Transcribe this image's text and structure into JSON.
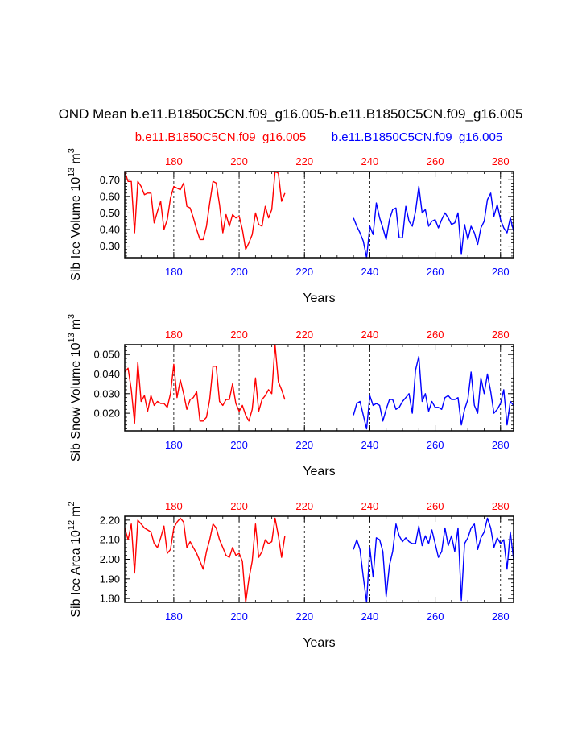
{
  "figure": {
    "title": "OND Mean b.e11.B1850C5CN.f09_g16.005-b.e11.B1850C5CN.f09_g16.005",
    "legend_red": "b.e11.B1850C5CN.f09_g16.005",
    "legend_blue": "b.e11.B1850C5CN.f09_g16.005",
    "colors": {
      "red": "#ff0000",
      "blue": "#0000ff",
      "axis": "#000000",
      "grid": "#000000"
    }
  },
  "chart_data": [
    {
      "type": "line",
      "ylabel_main": "Sib Ice Volume 10",
      "ylabel_exp": "13",
      "ylabel_unit": "m",
      "ylabel_unit_exp": "3",
      "xlabel": "Years",
      "xlim": [
        165,
        284
      ],
      "ylim": [
        0.23,
        0.75
      ],
      "yticks": [
        0.3,
        0.4,
        0.5,
        0.6,
        0.7
      ],
      "ytick_labels": [
        "0.30",
        "0.40",
        "0.50",
        "0.60",
        "0.70"
      ],
      "ydecimals": 2,
      "xticks": [
        180,
        200,
        220,
        240,
        260,
        280
      ],
      "xtick_labels_top": [
        "180",
        "200",
        "220",
        "240",
        "260",
        "280"
      ],
      "xtick_labels_bottom": [
        "180",
        "200",
        "220",
        "240",
        "260",
        "280"
      ],
      "series": [
        {
          "color": "red",
          "x_start": 165,
          "values": [
            0.75,
            0.69,
            0.69,
            0.38,
            0.69,
            0.66,
            0.61,
            0.62,
            0.62,
            0.44,
            0.51,
            0.57,
            0.4,
            0.46,
            0.59,
            0.66,
            0.65,
            0.64,
            0.68,
            0.54,
            0.53,
            0.47,
            0.4,
            0.34,
            0.34,
            0.42,
            0.56,
            0.69,
            0.68,
            0.55,
            0.38,
            0.49,
            0.42,
            0.49,
            0.47,
            0.48,
            0.4,
            0.28,
            0.32,
            0.37,
            0.5,
            0.43,
            0.42,
            0.54,
            0.47,
            0.52,
            0.75,
            0.74,
            0.57,
            0.62
          ]
        },
        {
          "color": "blue",
          "x_start": 235,
          "values": [
            0.47,
            0.42,
            0.38,
            0.33,
            0.23,
            0.42,
            0.37,
            0.56,
            0.47,
            0.41,
            0.34,
            0.46,
            0.52,
            0.53,
            0.35,
            0.35,
            0.54,
            0.45,
            0.42,
            0.51,
            0.66,
            0.5,
            0.52,
            0.42,
            0.45,
            0.46,
            0.41,
            0.46,
            0.5,
            0.47,
            0.43,
            0.44,
            0.5,
            0.25,
            0.43,
            0.34,
            0.42,
            0.38,
            0.31,
            0.41,
            0.45,
            0.58,
            0.62,
            0.48,
            0.55,
            0.46,
            0.41,
            0.38,
            0.47,
            0.39
          ]
        }
      ]
    },
    {
      "type": "line",
      "ylabel_main": "Sib Snow Volume 10",
      "ylabel_exp": "13",
      "ylabel_unit": "m",
      "ylabel_unit_exp": "3",
      "xlabel": "Years",
      "xlim": [
        165,
        284
      ],
      "ylim": [
        0.011,
        0.055
      ],
      "yticks": [
        0.02,
        0.03,
        0.04,
        0.05
      ],
      "ytick_labels": [
        "0.020",
        "0.030",
        "0.040",
        "0.050"
      ],
      "ydecimals": 3,
      "xticks": [
        180,
        200,
        220,
        240,
        260,
        280
      ],
      "xtick_labels_top": [
        "180",
        "200",
        "220",
        "240",
        "260",
        "280"
      ],
      "xtick_labels_bottom": [
        "180",
        "200",
        "220",
        "240",
        "260",
        "280"
      ],
      "series": [
        {
          "color": "red",
          "x_start": 165,
          "values": [
            0.041,
            0.043,
            0.032,
            0.015,
            0.046,
            0.026,
            0.029,
            0.021,
            0.029,
            0.024,
            0.026,
            0.025,
            0.025,
            0.023,
            0.03,
            0.045,
            0.028,
            0.037,
            0.03,
            0.022,
            0.027,
            0.028,
            0.031,
            0.016,
            0.016,
            0.018,
            0.027,
            0.044,
            0.044,
            0.026,
            0.024,
            0.027,
            0.027,
            0.035,
            0.025,
            0.021,
            0.024,
            0.019,
            0.016,
            0.022,
            0.038,
            0.021,
            0.027,
            0.029,
            0.032,
            0.03,
            0.055,
            0.036,
            0.032,
            0.027
          ]
        },
        {
          "color": "blue",
          "x_start": 235,
          "values": [
            0.019,
            0.025,
            0.026,
            0.019,
            0.012,
            0.029,
            0.024,
            0.025,
            0.024,
            0.016,
            0.022,
            0.027,
            0.027,
            0.022,
            0.023,
            0.026,
            0.028,
            0.03,
            0.02,
            0.042,
            0.049,
            0.026,
            0.03,
            0.021,
            0.026,
            0.023,
            0.023,
            0.022,
            0.028,
            0.029,
            0.027,
            0.027,
            0.028,
            0.014,
            0.022,
            0.027,
            0.041,
            0.024,
            0.02,
            0.038,
            0.03,
            0.04,
            0.031,
            0.02,
            0.022,
            0.025,
            0.032,
            0.014,
            0.026,
            0.024
          ]
        }
      ]
    },
    {
      "type": "line",
      "ylabel_main": "Sib Ice Area 10",
      "ylabel_exp": "12",
      "ylabel_unit": "m",
      "ylabel_unit_exp": "2",
      "xlabel": "Years",
      "xlim": [
        165,
        284
      ],
      "ylim": [
        1.78,
        2.22
      ],
      "yticks": [
        1.8,
        1.9,
        2.0,
        2.1,
        2.2
      ],
      "ytick_labels": [
        "1.80",
        "1.90",
        "2.00",
        "2.10",
        "2.20"
      ],
      "ydecimals": 2,
      "xticks": [
        180,
        200,
        220,
        240,
        260,
        280
      ],
      "xtick_labels_top": [
        "180",
        "200",
        "220",
        "240",
        "260",
        "280"
      ],
      "xtick_labels_bottom": [
        "180",
        "200",
        "220",
        "240",
        "260",
        "280"
      ],
      "series": [
        {
          "color": "red",
          "x_start": 165,
          "values": [
            2.16,
            2.1,
            2.18,
            1.93,
            2.2,
            2.18,
            2.16,
            2.15,
            2.14,
            2.08,
            2.06,
            2.11,
            2.17,
            2.03,
            2.05,
            2.16,
            2.19,
            2.21,
            2.19,
            2.06,
            2.09,
            2.06,
            2.03,
            1.99,
            1.95,
            2.04,
            2.1,
            2.18,
            2.16,
            2.1,
            2.06,
            2.02,
            2.01,
            2.06,
            2.02,
            2.03,
            1.99,
            1.78,
            1.9,
            1.99,
            2.18,
            2.01,
            2.04,
            2.1,
            2.08,
            2.09,
            2.21,
            2.12,
            2.01,
            2.12
          ]
        },
        {
          "color": "blue",
          "x_start": 235,
          "values": [
            2.05,
            2.1,
            2.05,
            1.91,
            1.78,
            2.06,
            1.91,
            2.11,
            2.1,
            2.04,
            1.81,
            1.97,
            2.04,
            2.18,
            2.12,
            2.09,
            2.11,
            2.09,
            2.08,
            2.08,
            2.17,
            2.07,
            2.12,
            2.08,
            2.15,
            2.08,
            2.01,
            2.04,
            2.16,
            2.07,
            2.12,
            2.04,
            2.16,
            1.79,
            2.08,
            2.11,
            2.16,
            2.18,
            2.05,
            2.11,
            2.14,
            2.21,
            2.16,
            2.06,
            2.11,
            2.08,
            2.1,
            1.95,
            2.14,
            2.0
          ]
        }
      ]
    }
  ]
}
